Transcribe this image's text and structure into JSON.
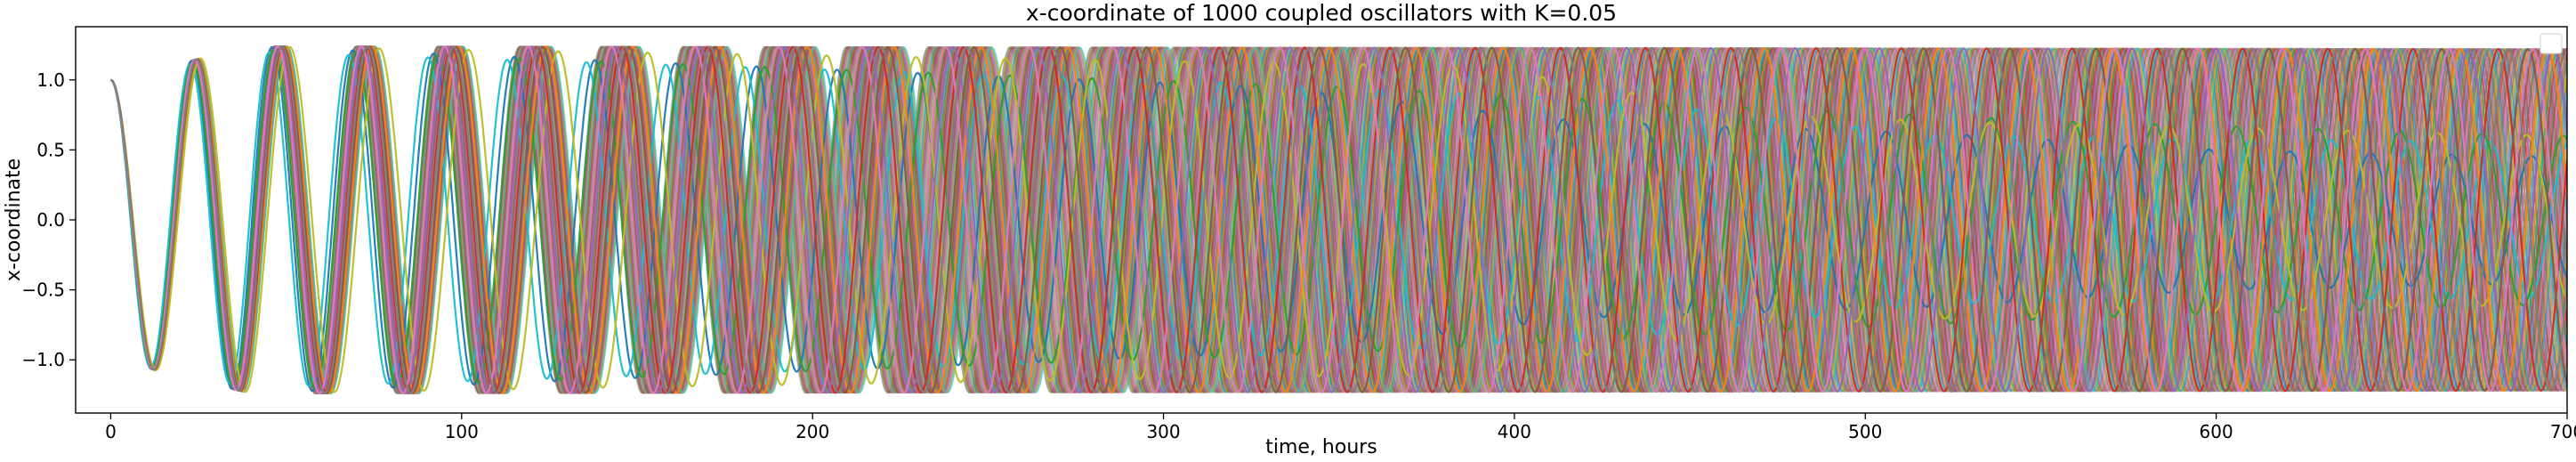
{
  "chart_data": {
    "type": "line",
    "title": "x-coordinate of 1000 coupled oscillators with K=0.05",
    "xlabel": "time, hours",
    "ylabel": "x-coordinate",
    "xlim": [
      -10,
      700
    ],
    "ylim": [
      -1.38,
      1.38
    ],
    "x_ticks": [
      0,
      100,
      200,
      300,
      400,
      500,
      600,
      700
    ],
    "y_ticks": [
      -1.0,
      -0.5,
      0.0,
      0.5,
      1.0
    ],
    "x_tick_labels": [
      "0",
      "100",
      "200",
      "300",
      "400",
      "500",
      "600",
      "700"
    ],
    "y_tick_labels": [
      "−1.0",
      "−0.5",
      "0.0",
      "0.5",
      "1.0"
    ],
    "grid": false,
    "legend": {
      "placement": "top-right",
      "entries": []
    },
    "oscillators": {
      "count": 1000,
      "initial_value": 1.0,
      "peak_amplitude": 1.24,
      "mean_period_hours": 24.2,
      "period_spread_hours": 0.9,
      "damping_time_hours": 4.0
    },
    "highlighted_series": [
      {
        "color": "#1f77b4",
        "period_hours": 23.0,
        "start_hours": 0,
        "amplitude_envelope": [
          [
            0,
            1.0
          ],
          [
            40,
            1.24
          ],
          [
            330,
            0.95
          ],
          [
            420,
            0.7
          ],
          [
            520,
            0.62
          ],
          [
            600,
            0.5
          ],
          [
            700,
            0.45
          ]
        ]
      },
      {
        "color": "#17becf",
        "period_hours": 22.6,
        "start_hours": 0,
        "amplitude_envelope": [
          [
            0,
            1.0
          ],
          [
            40,
            1.2
          ],
          [
            300,
            1.0
          ],
          [
            430,
            0.85
          ],
          [
            520,
            0.6
          ],
          [
            700,
            0.55
          ]
        ]
      },
      {
        "color": "#2ca02c",
        "period_hours": 23.3,
        "start_hours": 0,
        "amplitude_envelope": [
          [
            0,
            1.0
          ],
          [
            40,
            1.22
          ],
          [
            350,
            0.95
          ],
          [
            470,
            0.8
          ],
          [
            560,
            0.7
          ],
          [
            700,
            0.6
          ]
        ]
      },
      {
        "color": "#bcbd22",
        "period_hours": 25.5,
        "start_hours": 0,
        "amplitude_envelope": [
          [
            0,
            1.0
          ],
          [
            40,
            1.24
          ],
          [
            390,
            1.1
          ],
          [
            470,
            0.75
          ],
          [
            530,
            0.7
          ],
          [
            600,
            0.66
          ],
          [
            700,
            0.6
          ]
        ]
      },
      {
        "color": "#ff7f0e",
        "period_hours": 24.8,
        "start_hours": 0,
        "amplitude_envelope": [
          [
            0,
            1.0
          ],
          [
            40,
            1.24
          ],
          [
            700,
            1.22
          ]
        ]
      },
      {
        "color": "#d62728",
        "period_hours": 24.3,
        "start_hours": 0,
        "amplitude_envelope": [
          [
            0,
            1.0
          ],
          [
            40,
            1.24
          ],
          [
            700,
            1.22
          ]
        ]
      },
      {
        "color": "#9467bd",
        "period_hours": 24.0,
        "start_hours": 0,
        "amplitude_envelope": [
          [
            0,
            1.0
          ],
          [
            40,
            1.24
          ],
          [
            700,
            1.22
          ]
        ]
      },
      {
        "color": "#8c564b",
        "period_hours": 24.6,
        "start_hours": 0,
        "amplitude_envelope": [
          [
            0,
            1.0
          ],
          [
            40,
            1.24
          ],
          [
            700,
            1.22
          ]
        ]
      },
      {
        "color": "#e377c2",
        "period_hours": 23.8,
        "start_hours": 0,
        "amplitude_envelope": [
          [
            0,
            1.0
          ],
          [
            40,
            1.24
          ],
          [
            700,
            1.22
          ]
        ]
      },
      {
        "color": "#7f7f7f",
        "period_hours": 24.4,
        "start_hours": 0,
        "amplitude_envelope": [
          [
            0,
            1.0
          ],
          [
            40,
            1.24
          ],
          [
            700,
            1.22
          ]
        ]
      }
    ],
    "palette": [
      "#1f77b4",
      "#ff7f0e",
      "#2ca02c",
      "#d62728",
      "#9467bd",
      "#8c564b",
      "#e377c2",
      "#7f7f7f",
      "#bcbd22",
      "#17becf"
    ]
  }
}
